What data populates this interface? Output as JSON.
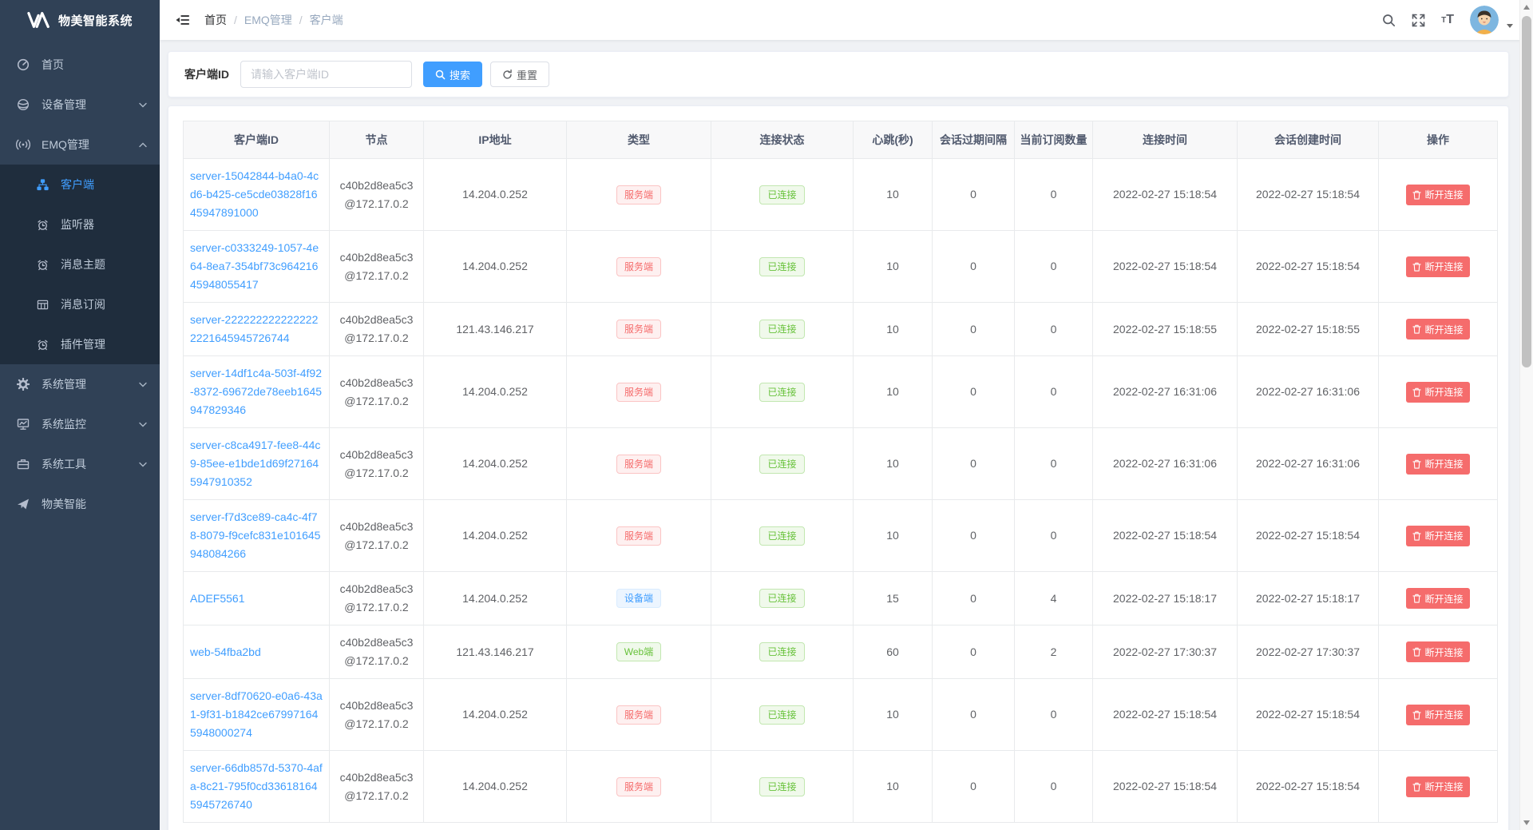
{
  "app": {
    "title": "物美智能系统"
  },
  "sidebar": {
    "items": [
      {
        "label": "首页",
        "icon": "dashboard-icon"
      },
      {
        "label": "设备管理",
        "icon": "device-icon",
        "state": "collapsed"
      },
      {
        "label": "EMQ管理",
        "icon": "broadcast-icon",
        "state": "expanded",
        "children": [
          {
            "label": "客户端",
            "icon": "sitemap-icon",
            "active": true
          },
          {
            "label": "监听器",
            "icon": "alarm-icon"
          },
          {
            "label": "消息主题",
            "icon": "alarm-icon"
          },
          {
            "label": "消息订阅",
            "icon": "grid-icon"
          },
          {
            "label": "插件管理",
            "icon": "alarm-icon"
          }
        ]
      },
      {
        "label": "系统管理",
        "icon": "gear-icon",
        "state": "collapsed"
      },
      {
        "label": "系统监控",
        "icon": "monitor-icon",
        "state": "collapsed"
      },
      {
        "label": "系统工具",
        "icon": "toolbox-icon",
        "state": "collapsed"
      },
      {
        "label": "物美智能",
        "icon": "send-icon"
      }
    ]
  },
  "breadcrumb": {
    "items": [
      "首页",
      "EMQ管理",
      "客户端"
    ],
    "separator": "/"
  },
  "search": {
    "label": "客户端ID",
    "placeholder": "请输入客户端ID",
    "value": "",
    "search_label": "搜索",
    "reset_label": "重置"
  },
  "table": {
    "headers": [
      "客户端ID",
      "节点",
      "IP地址",
      "类型",
      "连接状态",
      "心跳(秒)",
      "会话过期间隔",
      "当前订阅数量",
      "连接时间",
      "会话创建时间",
      "操作"
    ],
    "action_label": "断开连接",
    "rows": [
      {
        "client_id": "server-15042844-b4a0-4cd6-b425-ce5cde03828f1645947891000",
        "node": "c40b2d8ea5c3@172.17.0.2",
        "ip": "14.204.0.252",
        "type": "服务端",
        "type_variant": "danger",
        "status": "已连接",
        "heartbeat": "10",
        "session_expiry": "0",
        "subscriptions": "0",
        "connected_at": "2022-02-27 15:18:54",
        "session_created_at": "2022-02-27 15:18:54"
      },
      {
        "client_id": "server-c0333249-1057-4e64-8ea7-354bf73c96421645948055417",
        "node": "c40b2d8ea5c3@172.17.0.2",
        "ip": "14.204.0.252",
        "type": "服务端",
        "type_variant": "danger",
        "status": "已连接",
        "heartbeat": "10",
        "session_expiry": "0",
        "subscriptions": "0",
        "connected_at": "2022-02-27 15:18:54",
        "session_created_at": "2022-02-27 15:18:54"
      },
      {
        "client_id": "server-2222222222222222221645945726744",
        "node": "c40b2d8ea5c3@172.17.0.2",
        "ip": "121.43.146.217",
        "type": "服务端",
        "type_variant": "danger",
        "status": "已连接",
        "heartbeat": "10",
        "session_expiry": "0",
        "subscriptions": "0",
        "connected_at": "2022-02-27 15:18:55",
        "session_created_at": "2022-02-27 15:18:55"
      },
      {
        "client_id": "server-14df1c4a-503f-4f92-8372-69672de78eeb1645947829346",
        "node": "c40b2d8ea5c3@172.17.0.2",
        "ip": "14.204.0.252",
        "type": "服务端",
        "type_variant": "danger",
        "status": "已连接",
        "heartbeat": "10",
        "session_expiry": "0",
        "subscriptions": "0",
        "connected_at": "2022-02-27 16:31:06",
        "session_created_at": "2022-02-27 16:31:06"
      },
      {
        "client_id": "server-c8ca4917-fee8-44c9-85ee-e1bde1d69f271645947910352",
        "node": "c40b2d8ea5c3@172.17.0.2",
        "ip": "14.204.0.252",
        "type": "服务端",
        "type_variant": "danger",
        "status": "已连接",
        "heartbeat": "10",
        "session_expiry": "0",
        "subscriptions": "0",
        "connected_at": "2022-02-27 16:31:06",
        "session_created_at": "2022-02-27 16:31:06"
      },
      {
        "client_id": "server-f7d3ce89-ca4c-4f78-8079-f9cefc831e101645948084266",
        "node": "c40b2d8ea5c3@172.17.0.2",
        "ip": "14.204.0.252",
        "type": "服务端",
        "type_variant": "danger",
        "status": "已连接",
        "heartbeat": "10",
        "session_expiry": "0",
        "subscriptions": "0",
        "connected_at": "2022-02-27 15:18:54",
        "session_created_at": "2022-02-27 15:18:54"
      },
      {
        "client_id": "ADEF5561",
        "node": "c40b2d8ea5c3@172.17.0.2",
        "ip": "14.204.0.252",
        "type": "设备端",
        "type_variant": "primary",
        "status": "已连接",
        "heartbeat": "15",
        "session_expiry": "0",
        "subscriptions": "4",
        "connected_at": "2022-02-27 15:18:17",
        "session_created_at": "2022-02-27 15:18:17"
      },
      {
        "client_id": "web-54fba2bd",
        "node": "c40b2d8ea5c3@172.17.0.2",
        "ip": "121.43.146.217",
        "type": "Web端",
        "type_variant": "success",
        "status": "已连接",
        "heartbeat": "60",
        "session_expiry": "0",
        "subscriptions": "2",
        "connected_at": "2022-02-27 17:30:37",
        "session_created_at": "2022-02-27 17:30:37"
      },
      {
        "client_id": "server-8df70620-e0a6-43a1-9f31-b1842ce679971645948000274",
        "node": "c40b2d8ea5c3@172.17.0.2",
        "ip": "14.204.0.252",
        "type": "服务端",
        "type_variant": "danger",
        "status": "已连接",
        "heartbeat": "10",
        "session_expiry": "0",
        "subscriptions": "0",
        "connected_at": "2022-02-27 15:18:54",
        "session_created_at": "2022-02-27 15:18:54"
      },
      {
        "client_id": "server-66db857d-5370-4afa-8c21-795f0cd336181645945726740",
        "node": "c40b2d8ea5c3@172.17.0.2",
        "ip": "14.204.0.252",
        "type": "服务端",
        "type_variant": "danger",
        "status": "已连接",
        "heartbeat": "10",
        "session_expiry": "0",
        "subscriptions": "0",
        "connected_at": "2022-02-27 15:18:54",
        "session_created_at": "2022-02-27 15:18:54"
      }
    ]
  },
  "colors": {
    "primary": "#409eff",
    "success": "#67c23a",
    "danger": "#f56c6c",
    "sidebar_bg": "#304156",
    "submenu_bg": "#1f2d3d",
    "table_header_bg": "#f8f8f9"
  }
}
